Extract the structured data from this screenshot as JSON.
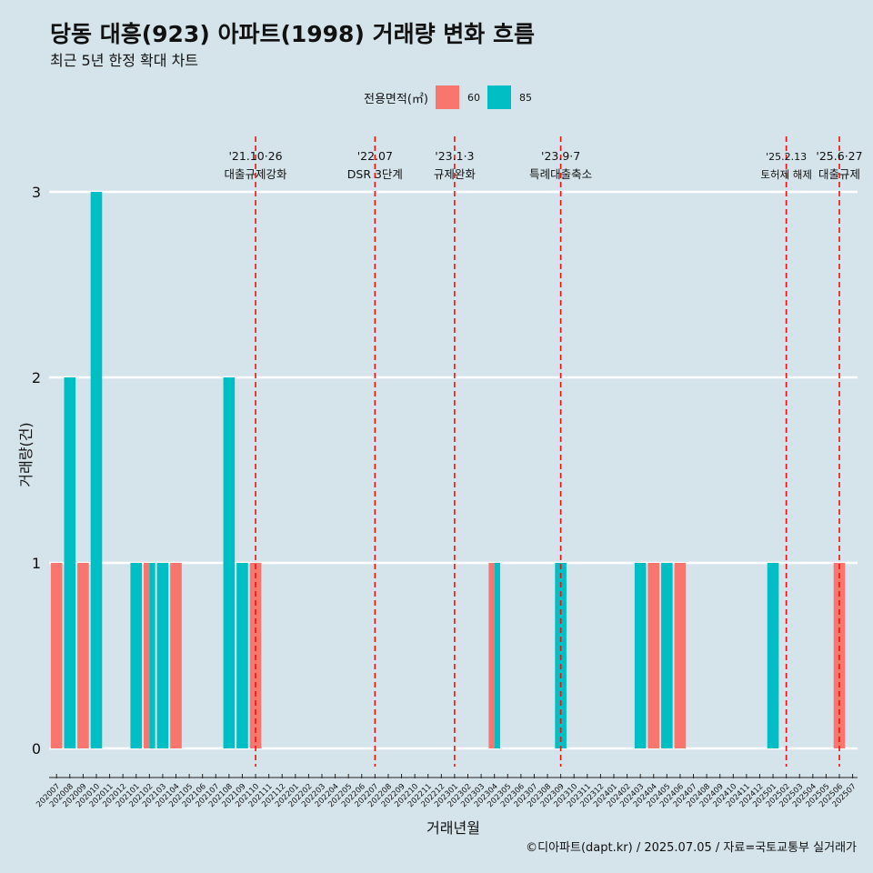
{
  "title": "당동 대흥(923) 아파트(1998) 거래량 변화 흐름",
  "subtitle": "최근 5년 한정 확대 차트",
  "caption": "©디아파트(dapt.kr) / 2025.07.05 / 자료=국토교통부 실거래가",
  "legend": {
    "title": "전용면적(㎡)",
    "items": [
      {
        "label": "60",
        "color": "#f8766d"
      },
      {
        "label": "85",
        "color": "#00bfc4"
      }
    ]
  },
  "chart_data": {
    "type": "bar",
    "xlabel": "거래년월",
    "ylabel": "거래량(건)",
    "ylim": [
      0,
      3
    ],
    "yticks": [
      0,
      1,
      2,
      3
    ],
    "grid": true,
    "legend_position": "top",
    "categories": [
      "202007",
      "202008",
      "202009",
      "202010",
      "202011",
      "202012",
      "202101",
      "202102",
      "202103",
      "202104",
      "202105",
      "202106",
      "202107",
      "202108",
      "202109",
      "202110",
      "202111",
      "202112",
      "202201",
      "202202",
      "202203",
      "202204",
      "202205",
      "202206",
      "202207",
      "202208",
      "202209",
      "202210",
      "202211",
      "202212",
      "202301",
      "202302",
      "202303",
      "202304",
      "202305",
      "202306",
      "202307",
      "202308",
      "202309",
      "202310",
      "202311",
      "202312",
      "202401",
      "202402",
      "202403",
      "202404",
      "202405",
      "202406",
      "202407",
      "202408",
      "202409",
      "202410",
      "202411",
      "202412",
      "202501",
      "202502",
      "202503",
      "202504",
      "202505",
      "202506",
      "202507"
    ],
    "series": [
      {
        "name": "60",
        "color": "#f8766d",
        "values": [
          1,
          0,
          1,
          0,
          0,
          0,
          0,
          1,
          0,
          1,
          0,
          0,
          0,
          0,
          0,
          1,
          0,
          0,
          0,
          0,
          0,
          0,
          0,
          0,
          0,
          0,
          0,
          0,
          0,
          0,
          0,
          0,
          0,
          1,
          0,
          0,
          0,
          0,
          0,
          0,
          0,
          0,
          0,
          0,
          0,
          1,
          0,
          1,
          0,
          0,
          0,
          0,
          0,
          0,
          0,
          0,
          0,
          0,
          0,
          1,
          0
        ]
      },
      {
        "name": "85",
        "color": "#00bfc4",
        "values": [
          0,
          2,
          0,
          3,
          0,
          0,
          1,
          1,
          1,
          0,
          0,
          0,
          0,
          2,
          1,
          0,
          0,
          0,
          0,
          0,
          0,
          0,
          0,
          0,
          0,
          0,
          0,
          0,
          0,
          0,
          0,
          0,
          0,
          1,
          0,
          0,
          0,
          0,
          1,
          0,
          0,
          0,
          0,
          0,
          1,
          0,
          1,
          0,
          0,
          0,
          0,
          0,
          0,
          0,
          1,
          0,
          0,
          0,
          0,
          0,
          0
        ]
      }
    ],
    "annotations": [
      {
        "date": "202110",
        "label1": "'21.10·26",
        "label2": "대출규제강화"
      },
      {
        "date": "202207",
        "label1": "'22.07",
        "label2": "DSR 3단계"
      },
      {
        "date": "202301",
        "label1": "'23.1·3",
        "label2": "규제완화"
      },
      {
        "date": "202309",
        "label1": "'23.9·7",
        "label2": "특례대출축소"
      },
      {
        "date": "202502",
        "label1": "'25.2.13",
        "label2": "토허제 해제"
      },
      {
        "date": "202506",
        "label1": "'25.6·27",
        "label2": "대출규제"
      }
    ]
  }
}
